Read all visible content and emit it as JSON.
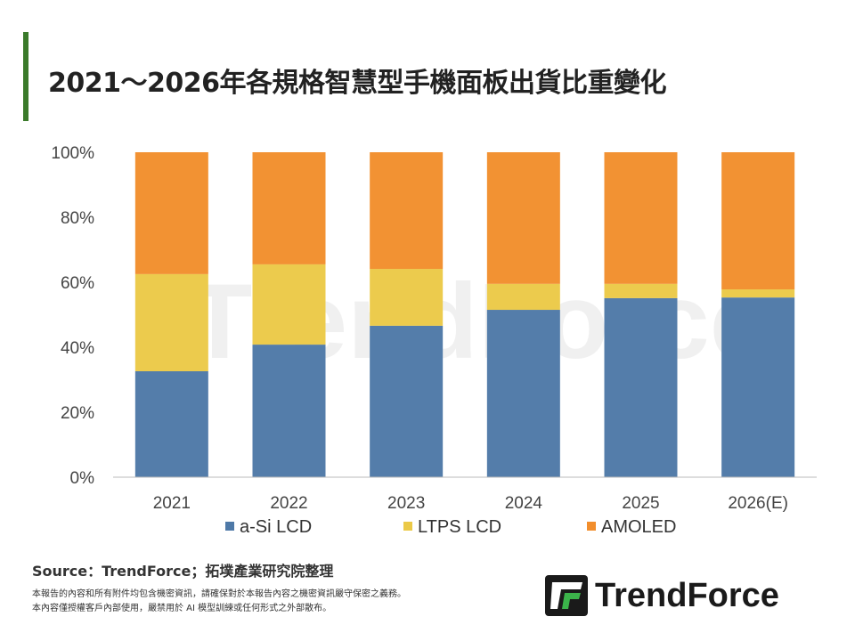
{
  "title": "2021～2026年各規格智慧型手機面板出貨比重變化",
  "source": "Source：TrendForce；拓墣產業研究院整理",
  "notes": [
    "本報告的內容和所有附件均包含機密資訊，請確保對於本報告內容之機密資訊嚴守保密之義務。",
    "本內容僅授權客戶內部使用，嚴禁用於 AI 模型訓練或任何形式之外部散布。"
  ],
  "logo": "TrendForce",
  "watermark": "TrendForce",
  "chart_data": {
    "type": "bar",
    "stacked": true,
    "title": "",
    "categories": [
      "2021",
      "2022",
      "2023",
      "2024",
      "2025",
      "2026(E)"
    ],
    "series": [
      {
        "name": "a-Si LCD",
        "color": "#4e79a7",
        "values": [
          32.6,
          40.8,
          46.6,
          51.5,
          55.1,
          55.3
        ]
      },
      {
        "name": "LTPS LCD",
        "color": "#ebc947",
        "values": [
          29.9,
          24.7,
          17.5,
          8.0,
          4.4,
          2.5
        ]
      },
      {
        "name": "AMOLED",
        "color": "#f28e2c",
        "values": [
          37.5,
          34.5,
          35.9,
          40.5,
          40.5,
          42.2
        ]
      }
    ],
    "ylim": [
      0,
      100
    ],
    "yticks": [
      "0%",
      "20%",
      "40%",
      "60%",
      "80%",
      "100%"
    ],
    "grid": false,
    "legend": "bottom"
  }
}
